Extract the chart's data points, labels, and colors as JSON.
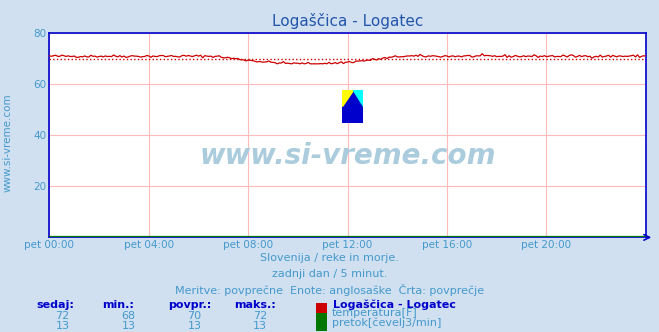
{
  "title": "Logaščica - Logatec",
  "bg_color": "#d0e0f0",
  "plot_bg_color": "#ffffff",
  "grid_color": "#ffbbbb",
  "border_color": "#0000cc",
  "title_color": "#2255aa",
  "text_color": "#4499cc",
  "label_color": "#0000cc",
  "x_labels": [
    "pet 00:00",
    "pet 04:00",
    "pet 08:00",
    "pet 12:00",
    "pet 16:00",
    "pet 20:00"
  ],
  "x_ticks": [
    0,
    48,
    96,
    144,
    192,
    240
  ],
  "x_max": 288,
  "y_min": 0,
  "y_max": 80,
  "y_ticks": [
    20,
    40,
    60,
    80
  ],
  "temp_avg": 70,
  "temp_color": "#cc0000",
  "flow_color": "#007700",
  "watermark_text": "www.si-vreme.com",
  "watermark_color": "#aaccdd",
  "side_label": "www.si-vreme.com",
  "subtitle1": "Slovenija / reke in morje.",
  "subtitle2": "zadnji dan / 5 minut.",
  "subtitle3": "Meritve: povprečne  Enote: anglosaške  Črta: povprečje",
  "legend_title": "Logaščica - Logatec",
  "table_headers": [
    "sedaj:",
    "min.:",
    "povpr.:",
    "maks.:"
  ],
  "temp_row": [
    72,
    68,
    70,
    72
  ],
  "flow_row": [
    13,
    13,
    13,
    13
  ],
  "temp_label": "temperatura[F]",
  "flow_label": "pretok[čevelj3/min]"
}
